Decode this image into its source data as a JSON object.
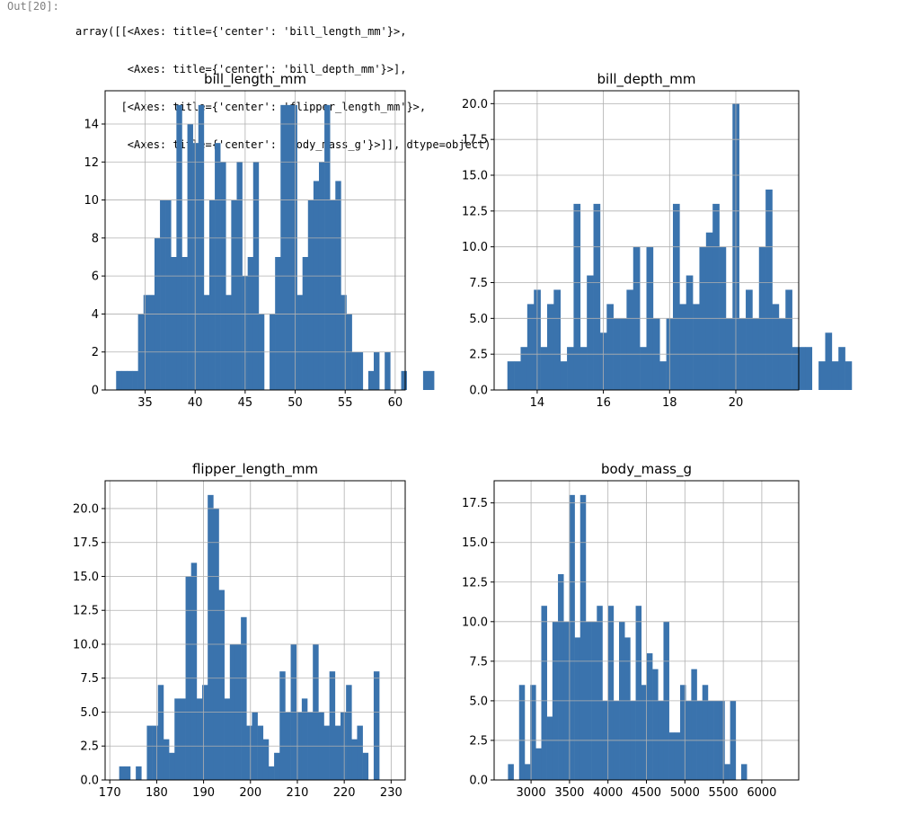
{
  "output": {
    "prompt": "Out[20]:",
    "lines": [
      "array([[<Axes: title={'center': 'bill_length_mm'}>,",
      "        <Axes: title={'center': 'bill_depth_mm'}>],",
      "       [<Axes: title={'center': 'flipper_length_mm'}>,",
      "        <Axes: title={'center': 'body_mass_g'}>]], dtype=object)"
    ]
  },
  "colors": {
    "bar": "#3a73ad",
    "grid": "#b0b0b0",
    "axis": "#000000"
  },
  "chart_data": [
    {
      "type": "bar",
      "title": "bill_length_mm",
      "grid": true,
      "xlim": [
        31,
        61
      ],
      "ylim": [
        0,
        15.75
      ],
      "xticks": [
        35,
        40,
        45,
        50,
        55,
        60
      ],
      "yticks": [
        0,
        2,
        4,
        6,
        8,
        10,
        12,
        14
      ],
      "x_start": 32.1,
      "bin_width": 0.548,
      "values": [
        1,
        1,
        1,
        1,
        4,
        5,
        5,
        8,
        10,
        10,
        7,
        15,
        7,
        14,
        13,
        15,
        5,
        10,
        13,
        12,
        5,
        10,
        12,
        6,
        7,
        12,
        4,
        0,
        4,
        7,
        15,
        15,
        15,
        5,
        7,
        10,
        11,
        12,
        15,
        10,
        11,
        5,
        4,
        2,
        2,
        0,
        1,
        2,
        0,
        2,
        0,
        0,
        1,
        0,
        0,
        0,
        1,
        1,
        0,
        0
      ]
    },
    {
      "type": "bar",
      "title": "bill_depth_mm",
      "grid": true,
      "xlim": [
        12.7,
        21.9
      ],
      "ylim": [
        0,
        20.9
      ],
      "xticks": [
        14,
        16,
        18,
        20
      ],
      "yticks": [
        0.0,
        2.5,
        5.0,
        7.5,
        10.0,
        12.5,
        15.0,
        17.5,
        20.0
      ],
      "x_start": 13.1,
      "bin_width": 0.2,
      "values": [
        2,
        2,
        3,
        6,
        7,
        3,
        6,
        7,
        2,
        3,
        13,
        3,
        8,
        13,
        4,
        6,
        5,
        5,
        7,
        10,
        3,
        10,
        5,
        2,
        5,
        13,
        6,
        8,
        6,
        10,
        11,
        13,
        10,
        5,
        20,
        5,
        7,
        5,
        10,
        14,
        6,
        5,
        7,
        3,
        3,
        3,
        0,
        2,
        4,
        2,
        3,
        2
      ]
    },
    {
      "type": "bar",
      "title": "flipper_length_mm",
      "grid": true,
      "xlim": [
        169,
        233
      ],
      "ylim": [
        0,
        22.05
      ],
      "xticks": [
        170,
        180,
        190,
        200,
        210,
        220,
        230
      ],
      "yticks": [
        0.0,
        2.5,
        5.0,
        7.5,
        10.0,
        12.5,
        15.0,
        17.5,
        20.0
      ],
      "x_start": 172,
      "bin_width": 1.18,
      "values": [
        1,
        1,
        0,
        1,
        0,
        4,
        4,
        7,
        3,
        2,
        6,
        6,
        15,
        16,
        6,
        7,
        21,
        20,
        14,
        6,
        10,
        10,
        12,
        4,
        5,
        4,
        3,
        1,
        2,
        8,
        5,
        10,
        5,
        6,
        5,
        10,
        5,
        4,
        8,
        4,
        5,
        7,
        3,
        4,
        2,
        0,
        8
      ]
    },
    {
      "type": "bar",
      "title": "body_mass_g",
      "grid": true,
      "xlim": [
        2520,
        6480
      ],
      "ylim": [
        0,
        18.9
      ],
      "xticks": [
        3000,
        3500,
        4000,
        4500,
        5000,
        5500,
        6000
      ],
      "yticks": [
        0.0,
        2.5,
        5.0,
        7.5,
        10.0,
        12.5,
        15.0,
        17.5
      ],
      "x_start": 2700,
      "bin_width": 72.2,
      "values": [
        1,
        0,
        6,
        1,
        6,
        2,
        11,
        4,
        10,
        13,
        10,
        18,
        9,
        18,
        10,
        10,
        11,
        5,
        11,
        5,
        10,
        9,
        5,
        11,
        6,
        8,
        7,
        5,
        10,
        3,
        3,
        6,
        5,
        7,
        5,
        6,
        5,
        5,
        5,
        1,
        5,
        0,
        1
      ]
    }
  ]
}
